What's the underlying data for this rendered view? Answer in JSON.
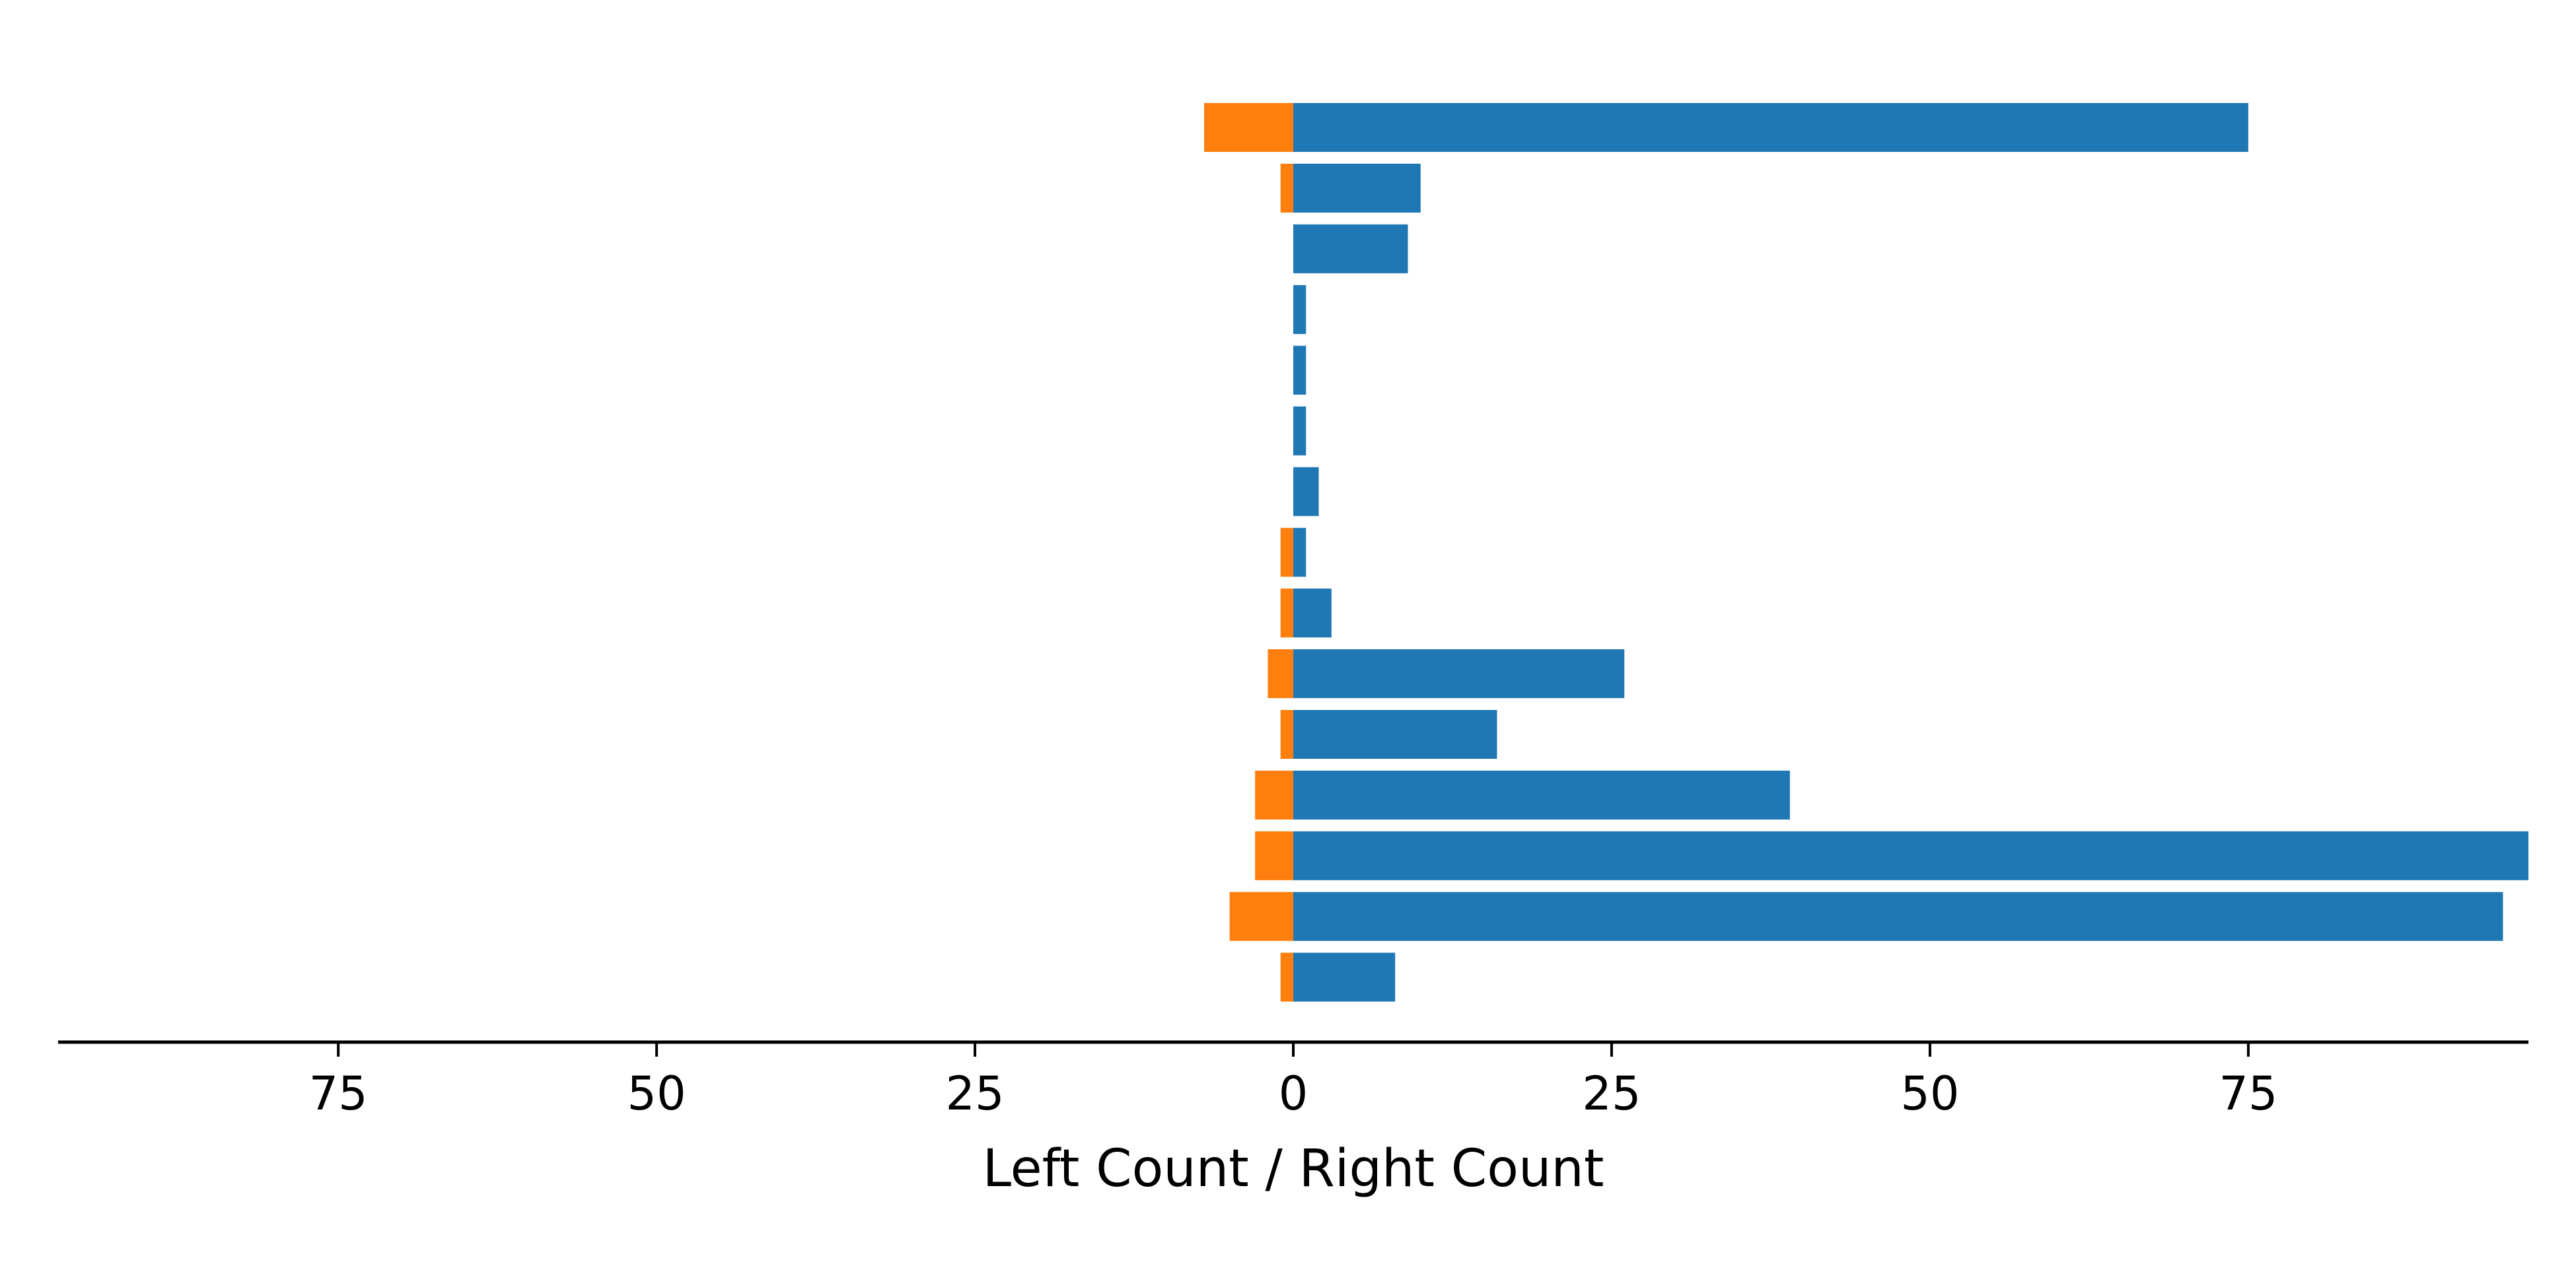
{
  "chart_data": {
    "type": "bar",
    "orientation": "horizontal",
    "stacked": "diverging",
    "xlabel": "Left Count / Right Count",
    "ylabel": "",
    "title": "",
    "xlim": [
      -97,
      97
    ],
    "xticks": [
      -75,
      -50,
      -25,
      0,
      25,
      50,
      75
    ],
    "xtick_labels": [
      "75",
      "50",
      "25",
      "0",
      "25",
      "50",
      "75"
    ],
    "grid": false,
    "legend": "none",
    "series": [
      {
        "key": "right",
        "color": "#1f77b4",
        "values": [
          75,
          10,
          9,
          1,
          1,
          1,
          2,
          1,
          3,
          26,
          16,
          39,
          97,
          95,
          8
        ]
      },
      {
        "key": "left",
        "color": "#ff7f0e",
        "values": [
          7,
          1,
          0,
          0,
          0,
          0,
          0,
          1,
          1,
          2,
          1,
          3,
          3,
          5,
          1
        ]
      }
    ]
  }
}
